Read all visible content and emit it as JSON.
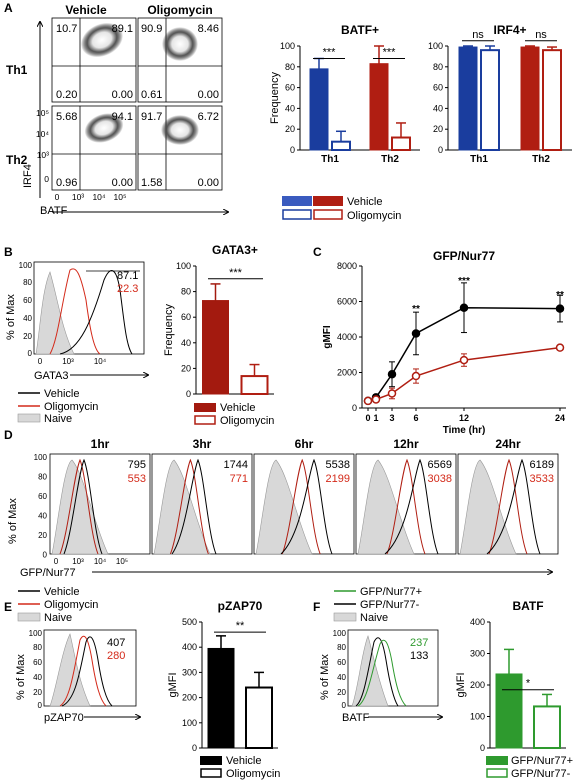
{
  "colors": {
    "black": "#000000",
    "blue": "#1a3d9e",
    "red": "#b01e12",
    "darkred": "#a31a0f",
    "green": "#2e9a2e",
    "naive": "#d8d8d8",
    "redtext": "#d42a1a",
    "greentext": "#2e9a2e"
  },
  "panels": {
    "A": "A",
    "B": "B",
    "C": "C",
    "D": "D",
    "E": "E",
    "F": "F"
  },
  "A": {
    "col_vehicle": "Vehicle",
    "col_oligo": "Oligomycin",
    "row_th1": "Th1",
    "row_th2": "Th2",
    "y_axis": "IRF4",
    "x_axis": "BATF",
    "ticks_y": [
      "10⁵",
      "10⁴",
      "10³",
      "0"
    ],
    "ticks_x": [
      "0",
      "10³",
      "10⁴",
      "10⁵"
    ],
    "quads": {
      "th1_veh": [
        "10.7",
        "89.1",
        "0.20",
        "0.00"
      ],
      "th1_oli": [
        "90.9",
        "8.46",
        "0.61",
        "0.00"
      ],
      "th2_veh": [
        "5.68",
        "94.1",
        "0.96",
        "0.00"
      ],
      "th2_oli": [
        "91.7",
        "6.72",
        "1.58",
        "0.00"
      ]
    },
    "legend": {
      "vehicle": "Vehicle",
      "oligo": "Oligomycin"
    }
  },
  "chart_data": [
    {
      "type": "bar",
      "title": "BATF+",
      "ylabel": "Frequency",
      "ylim": [
        0,
        100
      ],
      "categories": [
        "Th1",
        "Th2"
      ],
      "series": [
        {
          "name": "Vehicle",
          "values": [
            78,
            83
          ]
        },
        {
          "name": "Oligomycin",
          "values": [
            8,
            12
          ]
        }
      ],
      "annotations": [
        "***",
        "***"
      ]
    },
    {
      "type": "bar",
      "title": "IRF4+",
      "ylabel": "",
      "ylim": [
        0,
        100
      ],
      "categories": [
        "Th1",
        "Th2"
      ],
      "series": [
        {
          "name": "Vehicle",
          "values": [
            99,
            99
          ]
        },
        {
          "name": "Oligomycin",
          "values": [
            96,
            96
          ]
        }
      ],
      "annotations": [
        "ns",
        "ns"
      ]
    },
    {
      "type": "bar",
      "title": "GATA3+",
      "ylabel": "Frequency",
      "ylim": [
        0,
        100
      ],
      "categories": [
        "Vehicle",
        "Oligomycin"
      ],
      "series": [
        {
          "name": "Frequency",
          "values": [
            73,
            14
          ]
        }
      ],
      "annotations": [
        "***"
      ]
    },
    {
      "type": "line",
      "title": "GFP/Nur77",
      "xlabel": "Time (hr)",
      "ylabel": "gMFI",
      "ylim": [
        0,
        8000
      ],
      "x": [
        0,
        1,
        3,
        6,
        12,
        24
      ],
      "series": [
        {
          "name": "Vehicle",
          "values": [
            400,
            600,
            1900,
            4200,
            5650,
            5600
          ]
        },
        {
          "name": "Oligomycin",
          "values": [
            400,
            480,
            820,
            1800,
            2700,
            3400
          ]
        }
      ],
      "annotations": [
        "**",
        "***",
        "**"
      ]
    },
    {
      "type": "bar",
      "title": "pZAP70",
      "ylabel": "gMFI",
      "ylim": [
        0,
        500
      ],
      "categories": [
        "Vehicle",
        "Oligomycin"
      ],
      "series": [
        {
          "name": "gMFI",
          "values": [
            395,
            240
          ]
        }
      ],
      "annotations": [
        "**"
      ]
    },
    {
      "type": "bar",
      "title": "BATF",
      "ylabel": "gMFI",
      "ylim": [
        0,
        400
      ],
      "categories": [
        "GFP/Nur77+",
        "GFP/Nur77-"
      ],
      "series": [
        {
          "name": "gMFI",
          "values": [
            235,
            132
          ]
        }
      ],
      "annotations": [
        "*"
      ]
    }
  ],
  "B": {
    "ylabel": "% of Max",
    "xlabel": "GATA3",
    "ticks_y": [
      "100",
      "80",
      "60",
      "40",
      "20",
      "0"
    ],
    "ticks_x": [
      "0",
      "10³",
      "10⁴"
    ],
    "val_black": "87.1",
    "val_red": "22.3",
    "legend": [
      "Vehicle",
      "Oligomycin",
      "Naive"
    ],
    "bar_legend": [
      "Vehicle",
      "Oligomycin"
    ]
  },
  "D": {
    "ylabel": "% of Max",
    "xlabel": "GFP/Nur77",
    "ticks_x": [
      "0",
      "10³",
      "10⁴",
      "10⁵"
    ],
    "ticks_y": [
      "100",
      "80",
      "60",
      "40",
      "20",
      "0"
    ],
    "panels": [
      {
        "title": "1hr",
        "black": "795",
        "red": "553"
      },
      {
        "title": "3hr",
        "black": "1744",
        "red": "771"
      },
      {
        "title": "6hr",
        "black": "5538",
        "red": "2199"
      },
      {
        "title": "12hr",
        "black": "6569",
        "red": "3038"
      },
      {
        "title": "24hr",
        "black": "6189",
        "red": "3533"
      }
    ]
  },
  "E": {
    "ylabel": "% of Max",
    "xlabel": "pZAP70",
    "ticks_y": [
      "100",
      "80",
      "60",
      "40",
      "20",
      "0"
    ],
    "val_black": "407",
    "val_red": "280",
    "legend": [
      "Vehicle",
      "Oligomycin",
      "Naive"
    ],
    "bar_legend": [
      "Vehicle",
      "Oligomycin"
    ]
  },
  "F": {
    "ylabel": "% of Max",
    "xlabel": "BATF",
    "ticks_y": [
      "100",
      "80",
      "60",
      "40",
      "20",
      "0"
    ],
    "val_green": "237",
    "val_black": "133",
    "legend": [
      "GFP/Nur77+",
      "GFP/Nur77-",
      "Naive"
    ],
    "bar_legend": [
      "GFP/Nur77+",
      "GFP/Nur77-"
    ]
  }
}
